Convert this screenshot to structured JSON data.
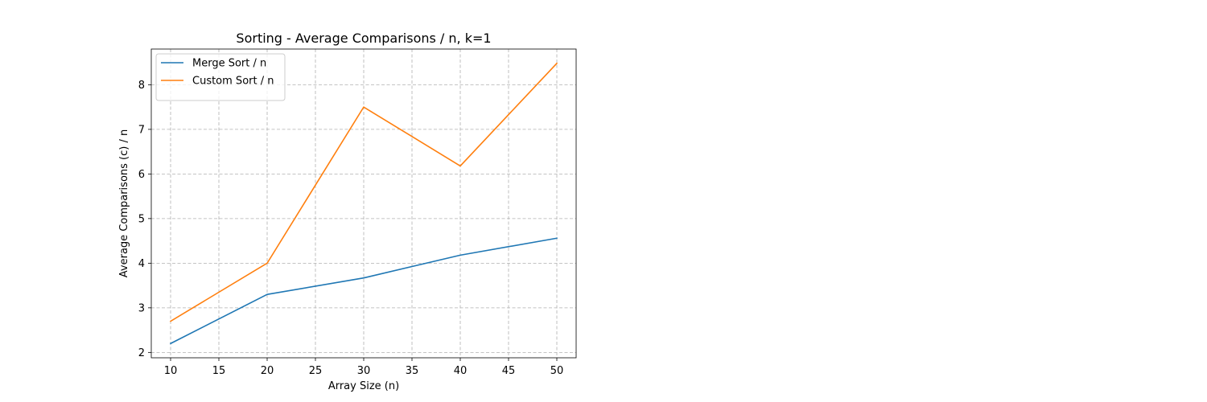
{
  "chart_data": {
    "type": "line",
    "title": "Sorting - Average Comparisons / n, k=1",
    "xlabel": "Array Size (n)",
    "ylabel": "Average Comparisons (c) / n",
    "x": [
      10,
      20,
      30,
      40,
      50
    ],
    "series": [
      {
        "name": "Merge Sort / n",
        "color": "#1f77b4",
        "values": [
          2.2,
          3.3,
          3.67,
          4.18,
          4.56
        ]
      },
      {
        "name": "Custom Sort / n",
        "color": "#ff7f0e",
        "values": [
          2.7,
          4.0,
          7.5,
          6.18,
          8.48
        ]
      }
    ],
    "xlim": [
      8,
      52
    ],
    "ylim": [
      1.88,
      8.8
    ],
    "xticks": [
      10,
      15,
      20,
      25,
      30,
      35,
      40,
      45,
      50
    ],
    "yticks": [
      2,
      3,
      4,
      5,
      6,
      7,
      8
    ],
    "grid": true,
    "grid_style": "dashed",
    "legend_position": "top-left"
  }
}
